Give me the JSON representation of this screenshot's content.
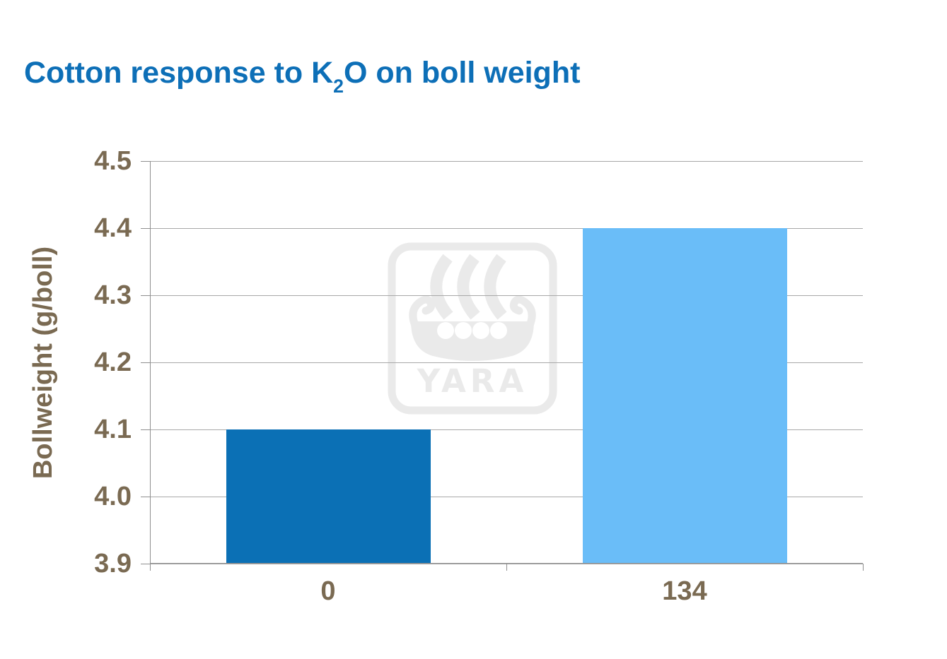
{
  "slide": {
    "background": "#ffffff"
  },
  "title": {
    "text_before_subscript": "Cotton response to K",
    "subscript": "2",
    "text_after_subscript": "O on boll weight",
    "color": "#0d6fb7"
  },
  "chart_data": {
    "type": "bar",
    "title": "Cotton response to K2O on boll weight",
    "categories": [
      "0",
      "134"
    ],
    "values": [
      4.1,
      4.4
    ],
    "bar_colors": [
      "#0b70b5",
      "#6abdf8"
    ],
    "xlabel": "",
    "ylabel": "Bollweight (g/boll)",
    "ylim": [
      3.9,
      4.5
    ],
    "ytick_interval": 0.1,
    "ytick_labels": [
      "4.5",
      "4.4",
      "4.3",
      "4.2",
      "4.1",
      "4.0",
      "3.9"
    ],
    "grid": true,
    "legend": false,
    "label_color": "#7a6a52",
    "gridline_color": "#a8a8a8",
    "axis_color": "#8f8f8f"
  },
  "watermark": {
    "label": "YARA",
    "color": "#eaeaea"
  }
}
